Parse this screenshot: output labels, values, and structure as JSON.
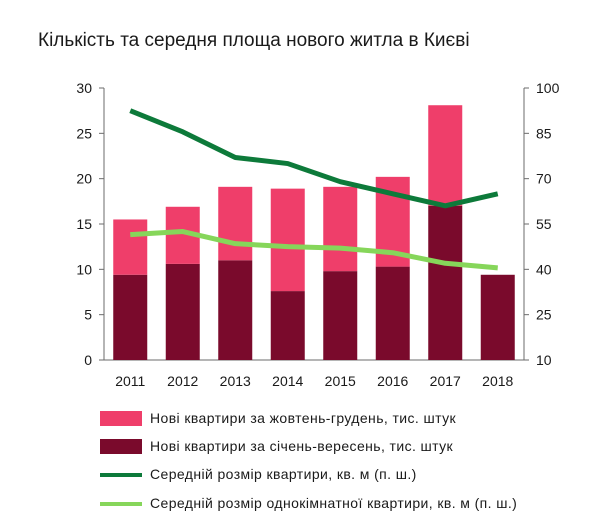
{
  "title": "Кількість та середня площа нового житла в Києві",
  "colors": {
    "q4_bar": "#ef3e6a",
    "q1q3_bar": "#7a0a2c",
    "avg_line": "#0d7a3a",
    "onebed_line": "#86d65a",
    "axis": "#6b6b6b"
  },
  "chart_data": {
    "type": "bar+line",
    "categories": [
      "2011",
      "2012",
      "2013",
      "2014",
      "2015",
      "2016",
      "2017",
      "2018"
    ],
    "left_axis": {
      "range": [
        0,
        30
      ],
      "ticks": [
        "0",
        "5",
        "10",
        "15",
        "20",
        "25",
        "30"
      ]
    },
    "right_axis": {
      "range": [
        10,
        100
      ],
      "ticks": [
        "10",
        "25",
        "40",
        "55",
        "70",
        "85",
        "100"
      ]
    },
    "stacked_bars": [
      {
        "name": "Нові квартири за січень-вересень, тис. штук",
        "axis": "left",
        "values": [
          9.4,
          10.6,
          11.0,
          7.6,
          9.8,
          10.3,
          17.0,
          9.4
        ]
      },
      {
        "name": "Нові квартири за жовтень-грудень, тис. штук",
        "axis": "left",
        "values": [
          6.1,
          6.3,
          8.1,
          11.3,
          9.3,
          9.9,
          11.1,
          0
        ]
      }
    ],
    "lines": [
      {
        "name": "Середній розмір квартири, кв. м (п. ш.)",
        "axis": "right",
        "values": [
          92.5,
          85.5,
          77.0,
          75.0,
          69.0,
          65.0,
          61.0,
          65.0
        ]
      },
      {
        "name": "Середній розмір однокімнатної квартири, кв. м (п. ш.)",
        "axis": "right",
        "values": [
          51.5,
          52.5,
          48.5,
          47.5,
          47.0,
          45.5,
          42.0,
          40.5
        ]
      }
    ],
    "grid": false,
    "legend_position": "bottom"
  },
  "legend": [
    {
      "label": "Нові квартири за жовтень-грудень, тис. штук",
      "kind": "bar",
      "color": "#ef3e6a"
    },
    {
      "label": "Нові квартири за січень-вересень, тис. штук",
      "kind": "bar",
      "color": "#7a0a2c"
    },
    {
      "label": "Середній розмір квартири, кв. м (п. ш.)",
      "kind": "line",
      "color": "#0d7a3a"
    },
    {
      "label": "Середній розмір однокімнатної квартири, кв. м (п. ш.)",
      "kind": "line",
      "color": "#86d65a"
    }
  ]
}
